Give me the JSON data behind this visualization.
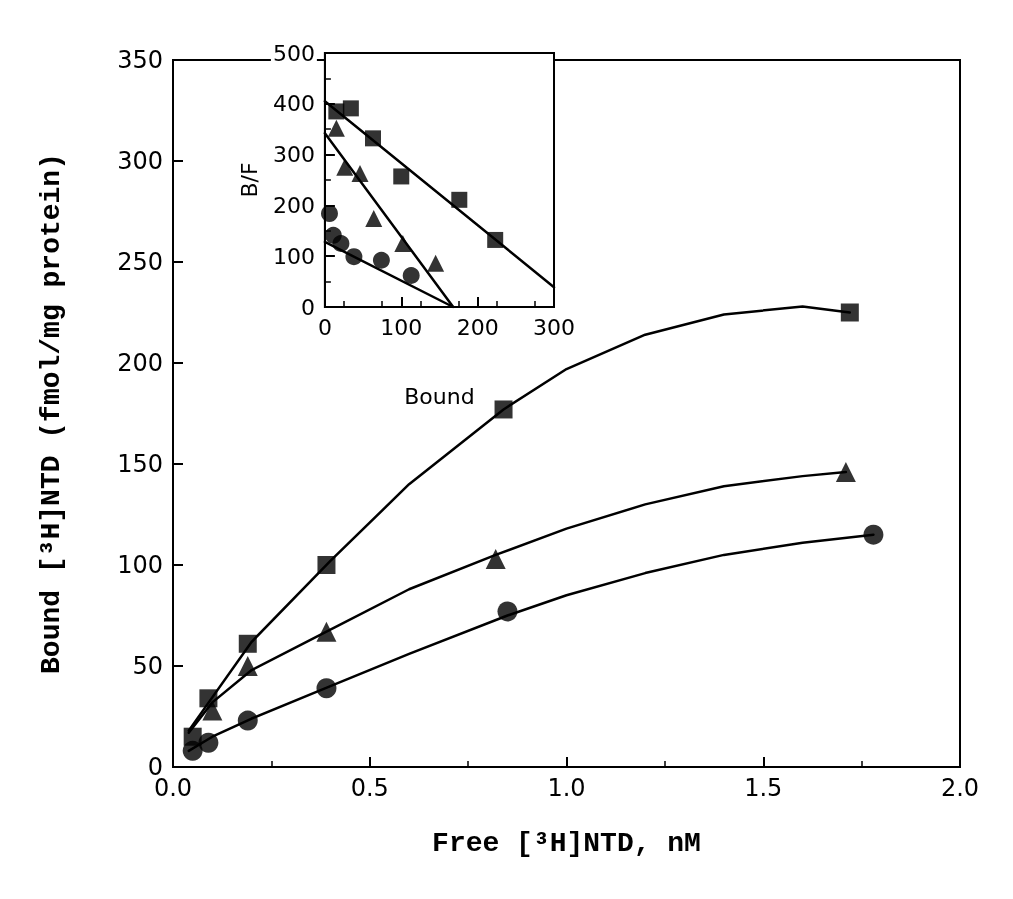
{
  "chart_data": [
    {
      "type": "scatter",
      "xlabel": "Free [³H]NTD, nM",
      "ylabel": "Bound [³H]NTD (fmol/mg protein)",
      "xlim": [
        0,
        2
      ],
      "xticks": [
        {
          "value": 0,
          "label": "0.0"
        },
        {
          "value": 0.5,
          "label": "0.5"
        },
        {
          "value": 1,
          "label": "1.0"
        },
        {
          "value": 1.5,
          "label": "1.5"
        },
        {
          "value": 2,
          "label": "2.0"
        }
      ],
      "ylim": [
        0,
        350
      ],
      "yticks": [
        0,
        50,
        100,
        150,
        200,
        250,
        300,
        350
      ],
      "grid": false,
      "series": [
        {
          "marker": "square",
          "color": "#000000",
          "x": [
            0.05,
            0.09,
            0.19,
            0.39,
            0.84,
            1.72
          ],
          "values": [
            15,
            34,
            61,
            100,
            177,
            225
          ]
        },
        {
          "marker": "triangle",
          "color": "#000000",
          "x": [
            0.1,
            0.19,
            0.39,
            0.82,
            1.71
          ],
          "values": [
            28,
            50,
            67,
            103,
            146
          ]
        },
        {
          "marker": "circle",
          "color": "#000000",
          "x": [
            0.05,
            0.09,
            0.19,
            0.39,
            0.85,
            1.78
          ],
          "values": [
            8,
            12,
            23,
            39,
            77,
            115
          ]
        },
        {
          "type": "line",
          "marker": "none",
          "line_style": "solid",
          "color": "#000000",
          "x": [
            0.04,
            0.2,
            0.4,
            0.6,
            0.84,
            1.0,
            1.2,
            1.4,
            1.6,
            1.72
          ],
          "values": [
            18,
            62,
            102,
            140,
            177,
            197,
            214,
            224,
            228,
            225
          ]
        },
        {
          "type": "line",
          "marker": "none",
          "line_style": "solid",
          "color": "#000000",
          "x": [
            0.04,
            0.1,
            0.2,
            0.4,
            0.6,
            0.82,
            1.0,
            1.2,
            1.4,
            1.6,
            1.71
          ],
          "values": [
            17,
            32,
            48,
            68,
            88,
            105,
            118,
            130,
            139,
            144,
            146
          ]
        },
        {
          "type": "line",
          "marker": "none",
          "line_style": "solid",
          "color": "#000000",
          "x": [
            0.04,
            0.1,
            0.2,
            0.4,
            0.6,
            0.85,
            1.0,
            1.2,
            1.4,
            1.6,
            1.78
          ],
          "values": [
            8,
            15,
            24,
            40,
            56,
            75,
            85,
            96,
            105,
            111,
            115
          ]
        }
      ]
    },
    {
      "type": "scatter",
      "xlabel": "Bound",
      "ylabel": "B/F",
      "xlim": [
        0,
        300
      ],
      "xticks": [
        0,
        100,
        200,
        300
      ],
      "ylim": [
        0,
        500
      ],
      "yticks": [
        0,
        100,
        200,
        300,
        400,
        500
      ],
      "grid": false,
      "series": [
        {
          "marker": "square",
          "color": "#000000",
          "x": [
            15,
            34,
            63,
            100,
            176,
            223
          ],
          "values": [
            385,
            391,
            332,
            257,
            211,
            132
          ]
        },
        {
          "marker": "triangle",
          "color": "#000000",
          "x": [
            15,
            26,
            46,
            64,
            102,
            145
          ],
          "values": [
            352,
            275,
            263,
            174,
            125,
            86
          ]
        },
        {
          "marker": "circle",
          "color": "#000000",
          "x": [
            6,
            11,
            21,
            38,
            74,
            113
          ],
          "values": [
            184,
            141,
            125,
            99,
            92,
            62
          ]
        },
        {
          "type": "line",
          "marker": "none",
          "line_style": "solid",
          "color": "#000000",
          "x": [
            0,
            300
          ],
          "values": [
            405,
            39
          ]
        },
        {
          "type": "line",
          "marker": "none",
          "line_style": "solid",
          "color": "#000000",
          "x": [
            0,
            168
          ],
          "values": [
            342,
            0
          ]
        },
        {
          "type": "line",
          "marker": "none",
          "line_style": "solid",
          "color": "#000000",
          "x": [
            0,
            168
          ],
          "values": [
            128,
            0
          ]
        }
      ]
    }
  ]
}
